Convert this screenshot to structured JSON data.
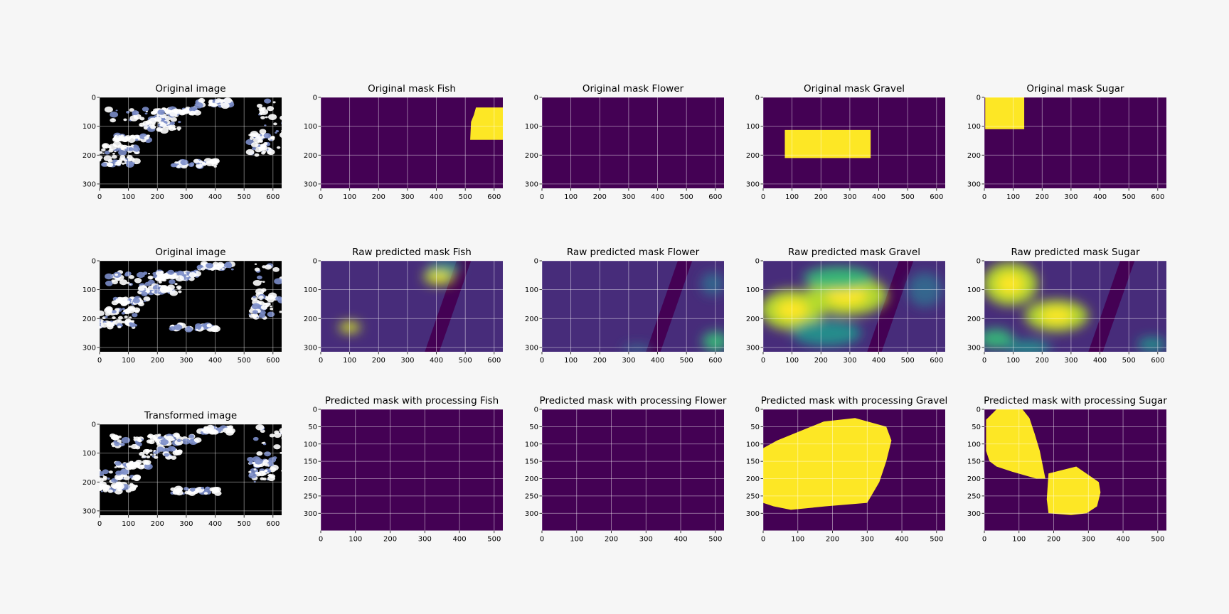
{
  "figure": {
    "background": "#f6f6f6",
    "axes_face": "#440154",
    "mask_color": "#fde725",
    "grid_color": "#ffffff",
    "tick_color": "#000000"
  },
  "chart_data": [
    {
      "type": "heatmap",
      "title": "Original image",
      "render": "satellite",
      "xlim": [
        0,
        630
      ],
      "ylim": [
        315,
        0
      ],
      "xticks": [
        0,
        100,
        200,
        300,
        400,
        500,
        600
      ],
      "yticks": [
        0,
        100,
        200,
        300
      ],
      "grid": true
    },
    {
      "type": "heatmap",
      "title": "Original mask Fish",
      "render": "mask",
      "xlim": [
        0,
        630
      ],
      "ylim": [
        315,
        0
      ],
      "xticks": [
        0,
        100,
        200,
        300,
        400,
        500,
        600
      ],
      "yticks": [
        0,
        100,
        200,
        300
      ],
      "grid": true,
      "mask_polygon": [
        [
          537,
          35
        ],
        [
          630,
          35
        ],
        [
          630,
          147
        ],
        [
          517,
          147
        ],
        [
          520,
          85
        ],
        [
          530,
          60
        ]
      ]
    },
    {
      "type": "heatmap",
      "title": "Original mask Flower",
      "render": "mask",
      "xlim": [
        0,
        630
      ],
      "ylim": [
        315,
        0
      ],
      "xticks": [
        0,
        100,
        200,
        300,
        400,
        500,
        600
      ],
      "yticks": [
        0,
        100,
        200,
        300
      ],
      "grid": true,
      "mask_polygon": []
    },
    {
      "type": "heatmap",
      "title": "Original mask Gravel",
      "render": "mask",
      "xlim": [
        0,
        630
      ],
      "ylim": [
        315,
        0
      ],
      "xticks": [
        0,
        100,
        200,
        300,
        400,
        500,
        600
      ],
      "yticks": [
        0,
        100,
        200,
        300
      ],
      "grid": true,
      "mask_polygon": [
        [
          75,
          113
        ],
        [
          372,
          113
        ],
        [
          372,
          210
        ],
        [
          75,
          210
        ]
      ]
    },
    {
      "type": "heatmap",
      "title": "Original mask Sugar",
      "render": "mask",
      "xlim": [
        0,
        630
      ],
      "ylim": [
        315,
        0
      ],
      "xticks": [
        0,
        100,
        200,
        300,
        400,
        500,
        600
      ],
      "yticks": [
        0,
        100,
        200,
        300
      ],
      "grid": true,
      "mask_polygon": [
        [
          3,
          0
        ],
        [
          138,
          0
        ],
        [
          138,
          110
        ],
        [
          3,
          110
        ]
      ]
    },
    {
      "type": "heatmap",
      "title": "Original image",
      "render": "satellite",
      "xlim": [
        0,
        630
      ],
      "ylim": [
        315,
        0
      ],
      "xticks": [
        0,
        100,
        200,
        300,
        400,
        500,
        600
      ],
      "yticks": [
        0,
        100,
        200,
        300
      ],
      "grid": true
    },
    {
      "type": "heatmap",
      "title": "Raw predicted mask Fish",
      "render": "raw",
      "xlim": [
        0,
        630
      ],
      "ylim": [
        315,
        0
      ],
      "xticks": [
        0,
        100,
        200,
        300,
        400,
        500,
        600
      ],
      "yticks": [
        0,
        100,
        200,
        300
      ],
      "grid": true,
      "blobs": [
        [
          410,
          55,
          55,
          28,
          0.95
        ],
        [
          100,
          230,
          38,
          20,
          0.9
        ],
        [
          430,
          20,
          60,
          20,
          0.45
        ]
      ]
    },
    {
      "type": "heatmap",
      "title": "Raw predicted mask Flower",
      "render": "raw",
      "xlim": [
        0,
        630
      ],
      "ylim": [
        315,
        0
      ],
      "xticks": [
        0,
        100,
        200,
        300,
        400,
        500,
        600
      ],
      "yticks": [
        0,
        100,
        200,
        300
      ],
      "grid": true,
      "blobs": [
        [
          600,
          280,
          45,
          35,
          0.6
        ],
        [
          590,
          80,
          40,
          40,
          0.25
        ],
        [
          330,
          305,
          50,
          14,
          0.35
        ]
      ]
    },
    {
      "type": "heatmap",
      "title": "Raw predicted mask Gravel",
      "render": "raw",
      "xlim": [
        0,
        630
      ],
      "ylim": [
        315,
        0
      ],
      "xticks": [
        0,
        100,
        200,
        300,
        400,
        500,
        600
      ],
      "yticks": [
        0,
        100,
        200,
        300
      ],
      "grid": true,
      "blobs": [
        [
          290,
          120,
          140,
          70,
          1.0
        ],
        [
          100,
          170,
          110,
          70,
          0.85
        ],
        [
          260,
          60,
          120,
          40,
          0.7
        ],
        [
          220,
          250,
          120,
          45,
          0.55
        ],
        [
          560,
          100,
          60,
          60,
          0.25
        ]
      ]
    },
    {
      "type": "heatmap",
      "title": "Raw predicted mask Sugar",
      "render": "raw",
      "xlim": [
        0,
        630
      ],
      "ylim": [
        315,
        0
      ],
      "xticks": [
        0,
        100,
        200,
        300,
        400,
        500,
        600
      ],
      "yticks": [
        0,
        100,
        200,
        300
      ],
      "grid": true,
      "blobs": [
        [
          90,
          80,
          95,
          75,
          1.0
        ],
        [
          250,
          190,
          110,
          55,
          0.85
        ],
        [
          40,
          270,
          60,
          35,
          0.6
        ],
        [
          150,
          300,
          80,
          25,
          0.45
        ],
        [
          580,
          290,
          50,
          25,
          0.4
        ]
      ]
    },
    {
      "type": "heatmap",
      "title": "Transformed image",
      "render": "satellite",
      "xlim": [
        0,
        630
      ],
      "ylim": [
        315,
        0
      ],
      "xticks": [
        0,
        100,
        200,
        300,
        400,
        500,
        600
      ],
      "yticks": [
        0,
        100,
        200,
        300
      ],
      "grid": true
    },
    {
      "type": "heatmap",
      "title": "Predicted mask with processing Fish",
      "render": "mask",
      "xlim": [
        0,
        525
      ],
      "ylim": [
        350,
        0
      ],
      "xticks": [
        0,
        100,
        200,
        300,
        400,
        500
      ],
      "yticks": [
        0,
        50,
        100,
        150,
        200,
        250,
        300
      ],
      "grid": true,
      "mask_polygon": []
    },
    {
      "type": "heatmap",
      "title": "Predicted mask with processing Flower",
      "render": "mask",
      "xlim": [
        0,
        525
      ],
      "ylim": [
        350,
        0
      ],
      "xticks": [
        0,
        100,
        200,
        300,
        400,
        500
      ],
      "yticks": [
        0,
        50,
        100,
        150,
        200,
        250,
        300
      ],
      "grid": true,
      "mask_polygon": []
    },
    {
      "type": "heatmap",
      "title": "Predicted mask with processing Gravel",
      "render": "mask",
      "xlim": [
        0,
        525
      ],
      "ylim": [
        350,
        0
      ],
      "xticks": [
        0,
        100,
        200,
        300,
        400,
        500
      ],
      "yticks": [
        0,
        50,
        100,
        150,
        200,
        250,
        300
      ],
      "grid": true,
      "mask_polygon": [
        [
          0,
          112
        ],
        [
          40,
          90
        ],
        [
          175,
          35
        ],
        [
          265,
          25
        ],
        [
          355,
          50
        ],
        [
          370,
          90
        ],
        [
          355,
          150
        ],
        [
          335,
          210
        ],
        [
          300,
          270
        ],
        [
          180,
          280
        ],
        [
          80,
          290
        ],
        [
          30,
          280
        ],
        [
          0,
          270
        ]
      ]
    },
    {
      "type": "heatmap",
      "title": "Predicted mask with processing Sugar",
      "render": "mask",
      "xlim": [
        0,
        525
      ],
      "ylim": [
        350,
        0
      ],
      "xticks": [
        0,
        100,
        200,
        300,
        400,
        500
      ],
      "yticks": [
        0,
        50,
        100,
        150,
        200,
        250,
        300
      ],
      "grid": true,
      "mask_polygon": [
        [
          5,
          30
        ],
        [
          35,
          0
        ],
        [
          110,
          0
        ],
        [
          130,
          25
        ],
        [
          145,
          70
        ],
        [
          160,
          120
        ],
        [
          170,
          170
        ],
        [
          176,
          200
        ],
        [
          150,
          200
        ],
        [
          80,
          180
        ],
        [
          35,
          165
        ],
        [
          15,
          150
        ],
        [
          5,
          120
        ]
      ],
      "mask_polygon2": [
        [
          185,
          185
        ],
        [
          265,
          165
        ],
        [
          330,
          210
        ],
        [
          335,
          240
        ],
        [
          325,
          280
        ],
        [
          295,
          300
        ],
        [
          250,
          305
        ],
        [
          185,
          300
        ],
        [
          180,
          260
        ]
      ]
    }
  ]
}
